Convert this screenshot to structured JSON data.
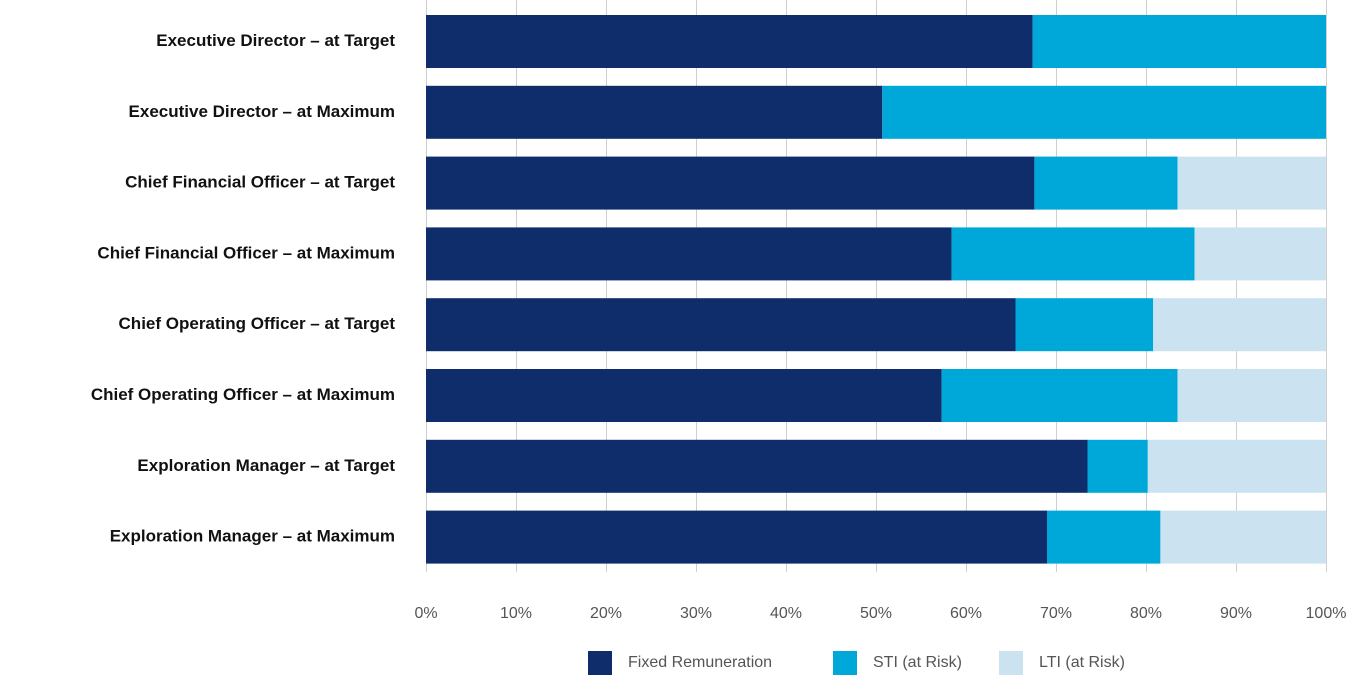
{
  "chart_data": {
    "type": "bar",
    "orientation": "horizontal",
    "stacked": true,
    "categories": [
      "Executive Director – at Target",
      "Executive Director – at Maximum",
      "Chief Financial Officer – at Target",
      "Chief Financial Officer – at Maximum",
      "Chief Operating Officer – at Target",
      "Chief Operating Officer – at Maximum",
      "Exploration Manager – at Target",
      "Exploration Manager – at Maximum"
    ],
    "series": [
      {
        "name": "Fixed Remuneration",
        "color": "#0f2d6b",
        "values": [
          67.4,
          50.7,
          67.6,
          58.4,
          65.5,
          57.3,
          73.5,
          69.0
        ]
      },
      {
        "name": "STI (at Risk)",
        "color": "#00a8d9",
        "values": [
          32.6,
          49.3,
          15.9,
          27.0,
          15.3,
          26.2,
          6.7,
          12.6
        ]
      },
      {
        "name": "LTI (at Risk)",
        "color": "#cbe3f0",
        "values": [
          0,
          0,
          16.5,
          14.6,
          19.2,
          16.5,
          19.8,
          18.4
        ]
      }
    ],
    "xlim": [
      0,
      100
    ],
    "x_ticks": [
      "0%",
      "10%",
      "20%",
      "30%",
      "40%",
      "50%",
      "60%",
      "70%",
      "80%",
      "90%",
      "100%"
    ],
    "xlabel": "",
    "ylabel": "",
    "title": "",
    "grid": "vertical",
    "legend": "bottom-center"
  }
}
